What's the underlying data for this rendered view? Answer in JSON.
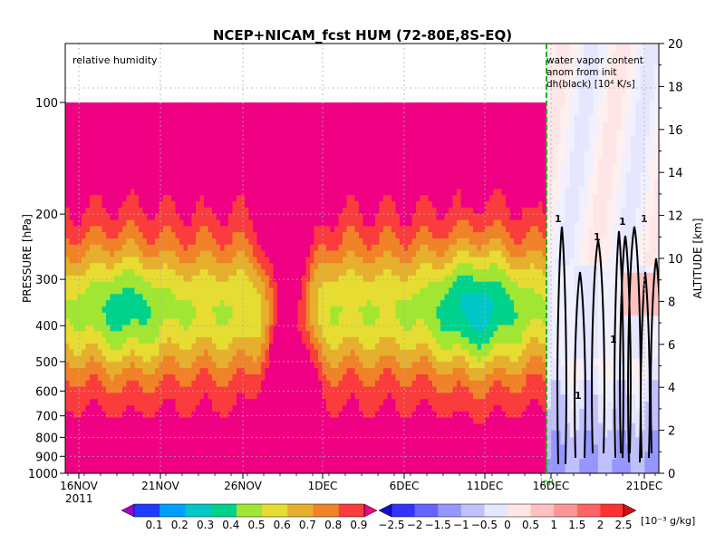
{
  "chart_data": {
    "type": "heatmap",
    "title": "NCEP+NICAM_fcst HUM (72-80E,8S-EQ)",
    "left_panel_label": "relative humidity",
    "right_panel_label_lines": [
      "water vapor content",
      "anom from init",
      "dh(black) [10⁴ K/s]"
    ],
    "init_marker_label": "init",
    "ylabel_left": "PRESSURE [hPa]",
    "ylabel_right": "ALTITUDE [km]",
    "y_left_ticks": [
      "100",
      "200",
      "300",
      "400",
      "500",
      "600",
      "700",
      "800",
      "900",
      "1000"
    ],
    "y_right_ticks": [
      "0",
      "2",
      "4",
      "6",
      "8",
      "10",
      "12",
      "14",
      "16",
      "18",
      "20"
    ],
    "x_ticks": [
      "16NOV",
      "21NOV",
      "26NOV",
      "1DEC",
      "6DEC",
      "11DEC",
      "16DEC",
      "21DEC"
    ],
    "year_label": "2011",
    "contour_label": "1",
    "grid": true,
    "colorbar_rh": {
      "labels": [
        "0.1",
        "0.2",
        "0.3",
        "0.4",
        "0.5",
        "0.6",
        "0.7",
        "0.8",
        "0.9"
      ],
      "colors": [
        "#a000c8",
        "#1e3cff",
        "#00a0ff",
        "#00c8c8",
        "#00d28c",
        "#a0e632",
        "#e6dc32",
        "#e6af2d",
        "#f08228",
        "#fa3c3c",
        "#f00082"
      ]
    },
    "colorbar_anom": {
      "labels": [
        "−2.5",
        "−2",
        "−1.5",
        "−1",
        "−0.5",
        "0",
        "0.5",
        "1",
        "1.5",
        "2",
        "2.5"
      ],
      "units": "[10⁻³ g/kg]",
      "colors": [
        "#1010d0",
        "#3232ff",
        "#6464ff",
        "#9696ff",
        "#c0c0ff",
        "#e6e6ff",
        "#ffe6e6",
        "#ffc0c0",
        "#ff9696",
        "#ff6464",
        "#ff3232",
        "#d01010"
      ]
    },
    "rh_series": [
      {
        "name": "0.9",
        "values": [
          0.94,
          0.93,
          0.94,
          0.93,
          0.9,
          0.93,
          0.96,
          0.96,
          0.95,
          0.96,
          0.96,
          0.97,
          0.96,
          0.96,
          0.95,
          0.94,
          0.93,
          0.95,
          0.96,
          0.97,
          0.96,
          0.95,
          0.94,
          0.95,
          0.96,
          0.94,
          0.92,
          0.93,
          0.95,
          0.94,
          0.95,
          0.96
        ]
      },
      {
        "name": "0.8",
        "values": [
          0.74,
          0.6,
          0.74,
          0.77,
          0.74,
          0.62,
          0.72,
          0.74,
          0.74,
          0.82,
          0.9,
          0.93,
          0.92,
          0.9,
          0.91,
          0.9,
          0.9,
          0.8,
          0.76,
          0.75,
          0.9,
          0.93,
          0.88,
          0.84,
          0.9,
          0.85,
          0.8,
          0.86,
          0.87,
          0.82,
          0.84,
          0.86
        ]
      },
      {
        "name": "0.7",
        "values": [
          0.52,
          0.35,
          0.42,
          0.5,
          0.56,
          0.46,
          0.45,
          0.42,
          0.4,
          0.55,
          0.7,
          0.8,
          0.85,
          0.78,
          0.72,
          0.62,
          0.52,
          0.45,
          0.48,
          0.55,
          0.64,
          0.7,
          0.68,
          0.6,
          0.5,
          0.38,
          0.28,
          0.34,
          0.42,
          0.48,
          0.56,
          0.6
        ]
      }
    ]
  }
}
